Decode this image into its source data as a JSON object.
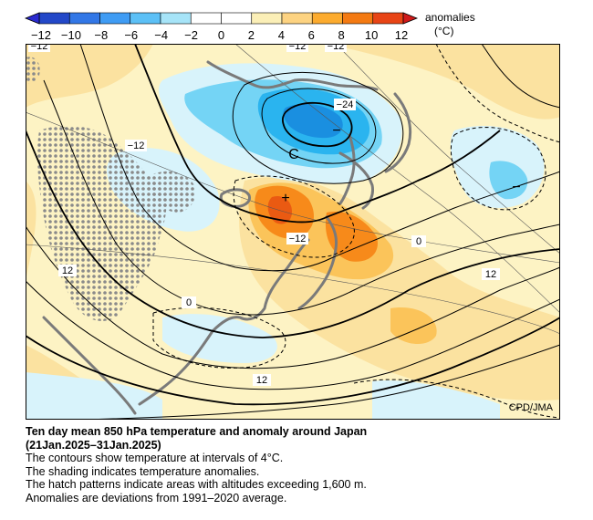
{
  "legend": {
    "title": "anomalies",
    "unit": "(°C)",
    "ticks": [
      "−12",
      "−10",
      "−8",
      "−6",
      "−4",
      "−2",
      "0",
      "2",
      "4",
      "6",
      "8",
      "10",
      "12"
    ],
    "colors": [
      "#2348c8",
      "#3277e6",
      "#3f9cf4",
      "#5cc0f6",
      "#a6e4f8",
      "#ffffff",
      "#ffffff",
      "#fbefb7",
      "#fdd381",
      "#fcab2e",
      "#f47a12",
      "#e84415"
    ]
  },
  "map": {
    "credit": "CPD/JMA",
    "contour_labels": [
      "−12",
      "−12",
      "−12",
      "−24",
      "−12",
      "−12",
      "0",
      "12",
      "12",
      "0",
      "12"
    ],
    "markers": [
      "C",
      "+",
      "−",
      "−"
    ],
    "colors": {
      "background": "#fdf3c4",
      "warm_light": "#fbe2a0",
      "warm_mid": "#fbc45a",
      "warm_strong": "#f78a1a",
      "warm_peak": "#ea5a12",
      "cold_light": "#d8f3fb",
      "cold_mid": "#74d4f5",
      "cold_strong": "#2ab4ef",
      "cold_peak": "#1a8fe0",
      "coast": "#7a7a7a",
      "hatch": "#8a8a8a"
    }
  },
  "caption": {
    "title": "Ten day mean 850 hPa temperature and anomaly around Japan",
    "period": "(21Jan.2025–31Jan.2025)",
    "lines": [
      "The contours show temperature at intervals of 4°C.",
      "The shading indicates temperature anomalies.",
      "The hatch patterns indicate areas with altitudes exceeding 1,600 m.",
      "Anomalies are deviations from 1991–2020 average."
    ]
  }
}
